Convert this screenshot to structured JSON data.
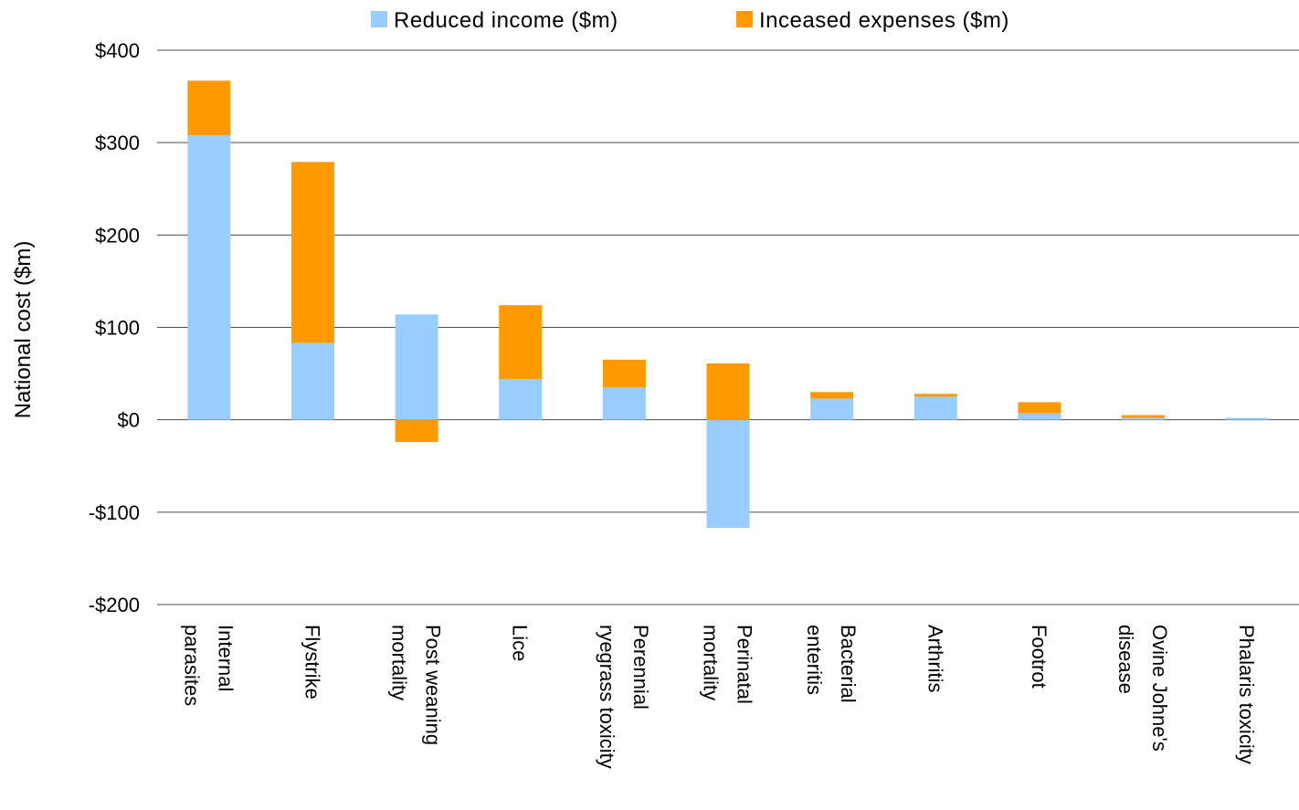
{
  "chart_data": {
    "type": "bar",
    "stacked": true,
    "ylabel": "National cost ($m)",
    "ylim": [
      -200,
      400
    ],
    "yticks": [
      400,
      300,
      200,
      100,
      0,
      -100,
      -200
    ],
    "ytick_labels": [
      "$400",
      "$300",
      "$200",
      "$100",
      "$0",
      "-$100",
      "-$200"
    ],
    "grid": true,
    "legend_position": "top",
    "categories": [
      [
        "Internal",
        "parasites"
      ],
      [
        "Flystrike"
      ],
      [
        "Post weaning",
        "mortality"
      ],
      [
        "Lice"
      ],
      [
        "Perennial",
        "ryegrass toxicity"
      ],
      [
        "Perinatal",
        "mortality"
      ],
      [
        "Bacterial",
        "enteritis"
      ],
      [
        "Arthritis"
      ],
      [
        "Footrot"
      ],
      [
        "Ovine Johne's",
        "disease"
      ],
      [
        "Phalaris toxicity"
      ]
    ],
    "series": [
      {
        "name": "Reduced income ($m)",
        "color": "#99ccff",
        "values": [
          308,
          83,
          114,
          44,
          35,
          -117,
          23,
          25,
          7,
          2,
          2
        ]
      },
      {
        "name": "Inceased expenses ($m)",
        "color": "#ff9900",
        "values": [
          59,
          196,
          -24,
          80,
          30,
          61,
          7,
          3,
          12,
          3,
          0
        ]
      }
    ]
  }
}
